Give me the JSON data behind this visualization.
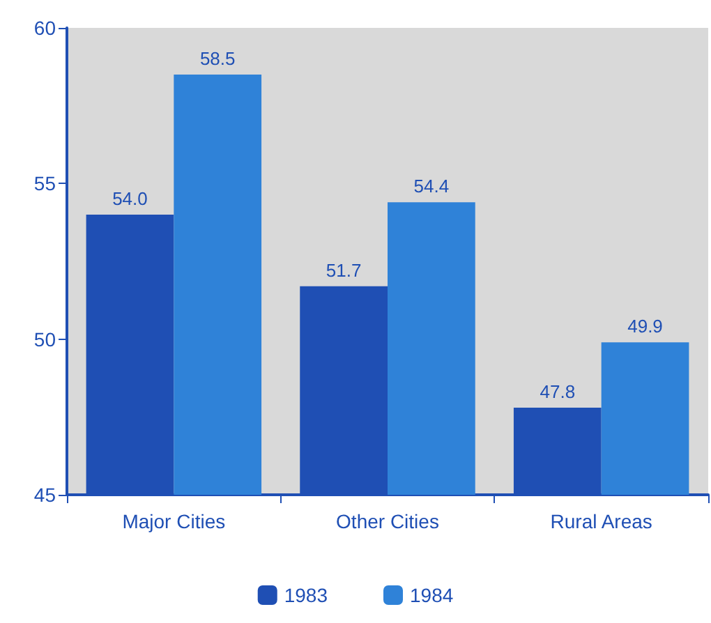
{
  "chart_data": {
    "type": "bar",
    "categories": [
      "Major Cities",
      "Other Cities",
      "Rural Areas"
    ],
    "series": [
      {
        "name": "1983",
        "color": "#1f4fb4",
        "values": [
          54.0,
          51.7,
          47.8
        ]
      },
      {
        "name": "1984",
        "color": "#2f82d8",
        "values": [
          58.5,
          54.4,
          49.9
        ]
      }
    ],
    "value_labels": [
      [
        "54.0",
        "51.7",
        "47.8"
      ],
      [
        "58.5",
        "54.4",
        "49.9"
      ]
    ],
    "ylim": [
      45,
      60
    ],
    "yticks": [
      45,
      50,
      55,
      60
    ],
    "grid": false,
    "legend": "bottom"
  }
}
